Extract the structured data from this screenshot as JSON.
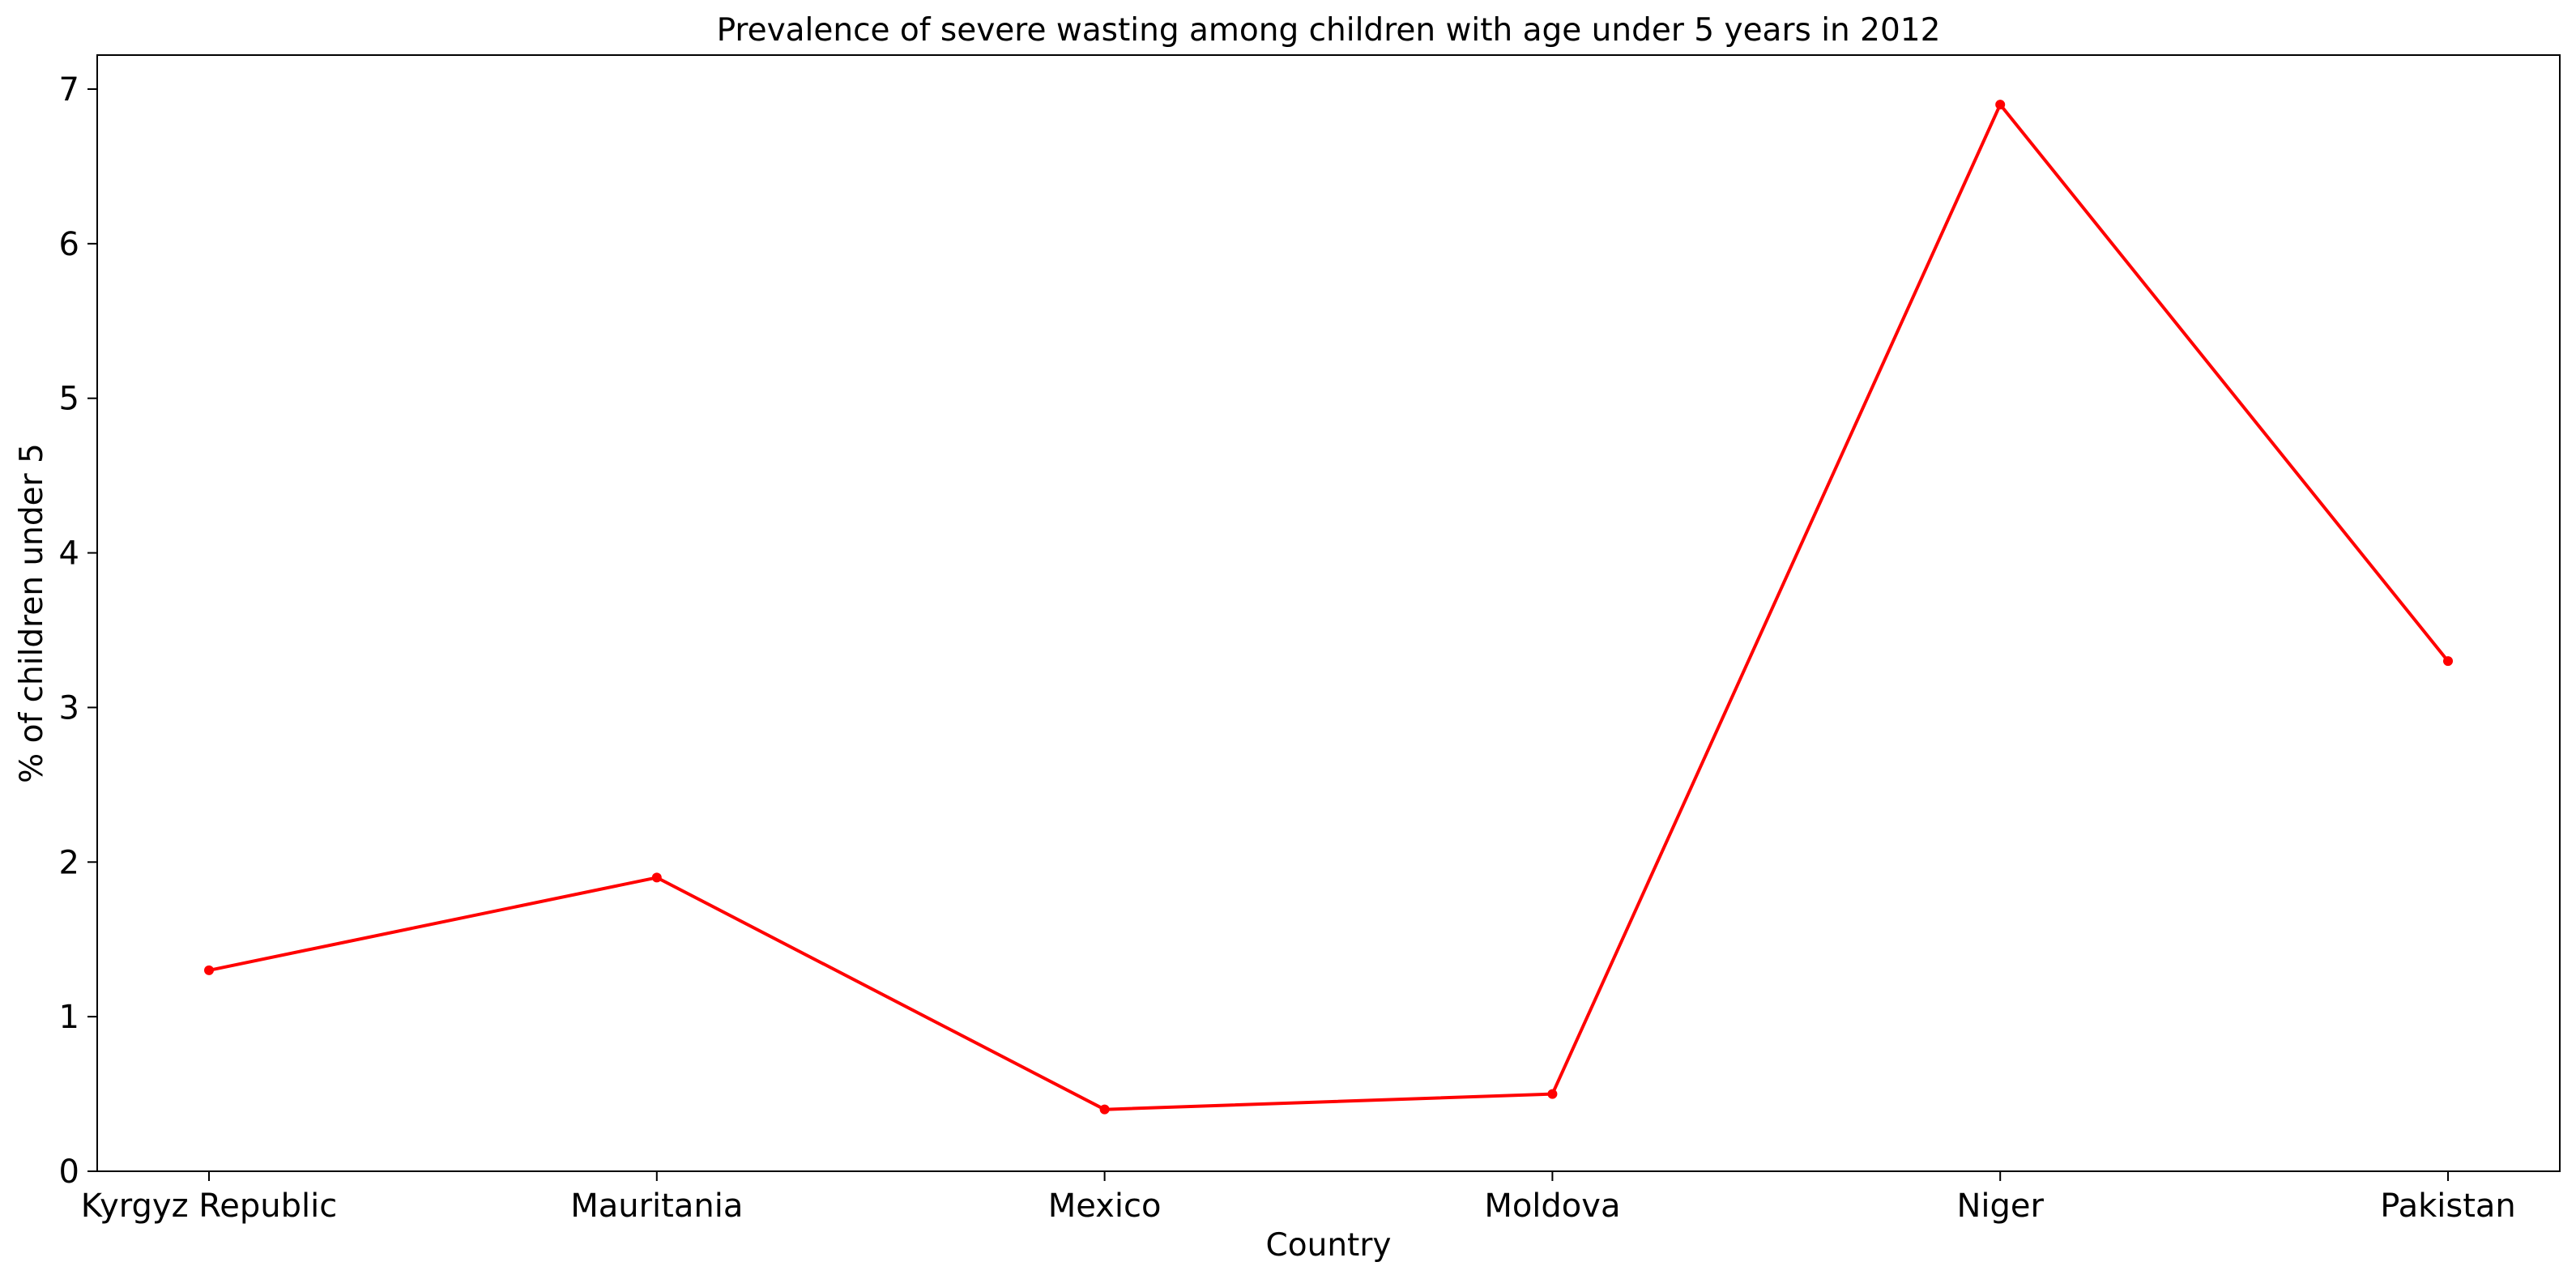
{
  "chart_data": {
    "type": "line",
    "title": "Prevalence of severe wasting among children with age under 5 years in 2012",
    "xlabel": "Country",
    "ylabel": "% of children under 5",
    "categories": [
      "Kyrgyz Republic",
      "Mauritania",
      "Mexico",
      "Moldova",
      "Niger",
      "Pakistan"
    ],
    "series": [
      {
        "values": [
          1.3,
          1.9,
          0.4,
          0.5,
          6.9,
          3.3
        ],
        "color": "#ff0000"
      }
    ],
    "ylim": [
      0,
      7.22
    ],
    "yticks": [
      "0",
      "1",
      "2",
      "3",
      "4",
      "5",
      "6",
      "7"
    ],
    "grid": false,
    "legend": "none"
  }
}
